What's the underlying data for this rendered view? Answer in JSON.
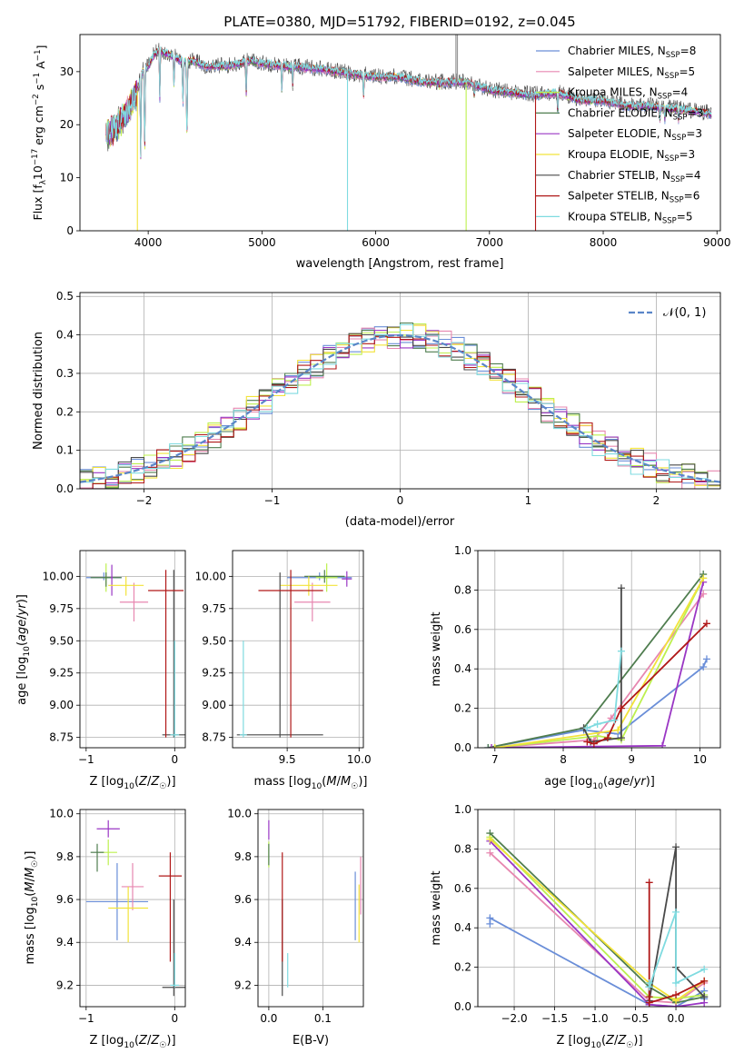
{
  "figure": {
    "title": "PLATE=0380, MJD=51792, FIBERID=0192, z=0.045"
  },
  "series_names": [
    "Chabrier MILES",
    "Salpeter MILES",
    "Kroupa MILES",
    "Chabrier ELODIE",
    "Salpeter ELODIE",
    "Kroupa ELODIE",
    "Chabrier STELIB",
    "Salpeter STELIB",
    "Kroupa STELIB"
  ],
  "series_colors": [
    "#6a8ed8",
    "#e787b0",
    "#bdf04e",
    "#4f7d4f",
    "#9a36c4",
    "#f2e33a",
    "#4a4a4a",
    "#b01818",
    "#7fdbe0"
  ],
  "chart_data": [
    {
      "id": "spectrum",
      "type": "line",
      "xlabel": "wavelength [Angstrom, rest frame]",
      "ylabel": "Flux [f_λ 10^-17 erg cm^-2 s^-1 A^-1]",
      "xlim": [
        3400,
        9030
      ],
      "ylim": [
        0,
        37
      ],
      "xticks": [
        4000,
        5000,
        6000,
        7000,
        8000,
        9000
      ],
      "yticks": [
        0,
        10,
        20,
        30
      ],
      "grid": false,
      "legend_position": "top-right",
      "legend": [
        {
          "label": "Chabrier MILES, N",
          "sub": "SSP",
          "val": "=8"
        },
        {
          "label": "Salpeter MILES, N",
          "sub": "SSP",
          "val": "=5"
        },
        {
          "label": "Kroupa MILES, N",
          "sub": "SSP",
          "val": "=4"
        },
        {
          "label": "Chabrier ELODIE, N",
          "sub": "SSP",
          "val": "=3"
        },
        {
          "label": "Salpeter ELODIE, N",
          "sub": "SSP",
          "val": "=3"
        },
        {
          "label": "Kroupa ELODIE, N",
          "sub": "SSP",
          "val": "=3"
        },
        {
          "label": "Chabrier STELIB, N",
          "sub": "SSP",
          "val": "=4"
        },
        {
          "label": "Salpeter STELIB, N",
          "sub": "SSP",
          "val": "=6"
        },
        {
          "label": "Kroupa STELIB, N",
          "sub": "SSP",
          "val": "=5"
        }
      ],
      "continuum": [
        [
          3630,
          18
        ],
        [
          3700,
          19
        ],
        [
          3800,
          22
        ],
        [
          3850,
          24
        ],
        [
          3900,
          26
        ],
        [
          3950,
          30
        ],
        [
          4000,
          31
        ],
        [
          4050,
          33
        ],
        [
          4100,
          34
        ],
        [
          4200,
          33
        ],
        [
          4300,
          32
        ],
        [
          4400,
          32
        ],
        [
          4500,
          31
        ],
        [
          4700,
          31
        ],
        [
          4900,
          32
        ],
        [
          5000,
          31.5
        ],
        [
          5200,
          31
        ],
        [
          5500,
          30.5
        ],
        [
          5800,
          29.5
        ],
        [
          6000,
          29
        ],
        [
          6200,
          29
        ],
        [
          6400,
          28
        ],
        [
          6600,
          28
        ],
        [
          6800,
          28
        ],
        [
          7000,
          26.5
        ],
        [
          7200,
          26
        ],
        [
          7400,
          25.5
        ],
        [
          7600,
          26
        ],
        [
          7800,
          24.5
        ],
        [
          8000,
          24.5
        ],
        [
          8200,
          23.5
        ],
        [
          8400,
          23.5
        ],
        [
          8600,
          23
        ],
        [
          8800,
          22.5
        ],
        [
          8950,
          22
        ]
      ],
      "absorption_lines": [
        [
          3934,
          14
        ],
        [
          3969,
          14
        ],
        [
          4102,
          25
        ],
        [
          4227,
          27
        ],
        [
          4305,
          23
        ],
        [
          4340,
          15
        ],
        [
          4861,
          25
        ],
        [
          5175,
          26
        ],
        [
          5270,
          27
        ],
        [
          5893,
          25
        ],
        [
          6563,
          27
        ],
        [
          6867,
          25
        ],
        [
          7600,
          22
        ],
        [
          8498,
          21
        ],
        [
          8542,
          21
        ],
        [
          8662,
          21
        ]
      ],
      "spikes": [
        [
          3905,
          0
        ],
        [
          5752,
          0
        ],
        [
          6795,
          0
        ],
        [
          7405,
          0
        ]
      ]
    },
    {
      "id": "residuals",
      "type": "step",
      "xlabel": "(data-model)/error",
      "ylabel": "Normed distribution",
      "xlim": [
        -2.5,
        2.5
      ],
      "ylim": [
        0,
        0.51
      ],
      "xticks": [
        -2,
        -1,
        0,
        1,
        2
      ],
      "yticks": [
        0.0,
        0.1,
        0.2,
        0.3,
        0.4,
        0.5
      ],
      "grid": true,
      "legend_position": "top-right",
      "legend_label": "𝒩(0, 1)",
      "bin_width": 0.1
    },
    {
      "id": "age-vs-Z",
      "type": "errorbar",
      "xlabel": "Z [log₁₀(Z/Z☉)]",
      "ylabel": "age  [log₁₀(age/yr)]",
      "xlim": [
        -1.07,
        0.12
      ],
      "ylim": [
        8.67,
        10.2
      ],
      "xticks": [
        -1,
        0
      ],
      "yticks": [
        8.75,
        9.0,
        9.25,
        9.5,
        9.75,
        10.0
      ],
      "grid": true,
      "points": [
        [
          -1.0,
          -0.6,
          9.99,
          9.97,
          10.03
        ],
        [
          -0.62,
          -0.3,
          9.8,
          9.65,
          9.95
        ],
        [
          -0.8,
          -0.75,
          9.99,
          9.88,
          10.1
        ],
        [
          -0.95,
          -0.6,
          9.99,
          9.92,
          10.03
        ],
        [
          -0.72,
          -0.7,
          9.99,
          9.85,
          10.09
        ],
        [
          -0.75,
          -0.35,
          9.93,
          9.85,
          10.0
        ],
        [
          -0.14,
          0.12,
          8.77,
          8.75,
          10.05
        ],
        [
          -0.3,
          0.1,
          9.89,
          8.75,
          10.05
        ],
        [
          -0.05,
          0.05,
          8.77,
          8.75,
          9.5
        ]
      ]
    },
    {
      "id": "age-vs-mass",
      "type": "errorbar",
      "xlabel": "mass [log₁₀(M/M☉)]",
      "ylabel": "",
      "xlim": [
        9.12,
        10.03
      ],
      "ylim": [
        8.67,
        10.2
      ],
      "xticks": [
        9.5,
        10.0
      ],
      "yticks": [
        8.75,
        9.0,
        9.25,
        9.5,
        9.75,
        10.0
      ],
      "grid": true,
      "points": [
        [
          9.5,
          9.95,
          9.99,
          9.97,
          10.03
        ],
        [
          9.55,
          9.8,
          9.8,
          9.65,
          9.95
        ],
        [
          9.7,
          9.85,
          9.99,
          9.88,
          10.1
        ],
        [
          9.62,
          9.9,
          10.0,
          9.95,
          10.05
        ],
        [
          9.88,
          9.95,
          9.98,
          9.92,
          10.04
        ],
        [
          9.45,
          9.85,
          9.93,
          9.85,
          10.0
        ],
        [
          9.15,
          9.75,
          8.77,
          8.75,
          10.03
        ],
        [
          9.3,
          9.75,
          9.89,
          8.75,
          10.05
        ],
        [
          9.17,
          9.22,
          8.77,
          8.75,
          9.5
        ]
      ]
    },
    {
      "id": "weight-vs-age",
      "type": "line",
      "xlabel": "age  [log₁₀(age/yr)]",
      "ylabel": "mass weight",
      "xlim": [
        6.75,
        10.3
      ],
      "ylim": [
        0,
        1.0
      ],
      "xticks": [
        7,
        8,
        9,
        10
      ],
      "yticks": [
        0.0,
        0.2,
        0.4,
        0.6,
        0.8,
        1.0
      ],
      "grid": true,
      "series": [
        {
          "x": [
            6.9,
            8.3,
            8.8,
            10.05,
            10.1
          ],
          "y": [
            0.0,
            0.09,
            0.07,
            0.41,
            0.45
          ]
        },
        {
          "x": [
            6.95,
            8.45,
            8.7,
            10.05
          ],
          "y": [
            0.0,
            0.04,
            0.15,
            0.78
          ]
        },
        {
          "x": [
            7.0,
            8.5,
            8.85,
            10.05
          ],
          "y": [
            0.0,
            0.06,
            0.04,
            0.86
          ]
        },
        {
          "x": [
            6.9,
            8.3,
            10.05
          ],
          "y": [
            0.0,
            0.1,
            0.88
          ]
        },
        {
          "x": [
            6.95,
            9.45,
            10.05
          ],
          "y": [
            0.0,
            0.01,
            0.84
          ]
        },
        {
          "x": [
            7.0,
            8.8,
            10.05
          ],
          "y": [
            0.0,
            0.09,
            0.86
          ]
        },
        {
          "x": [
            8.3,
            8.4,
            8.85,
            8.85
          ],
          "y": [
            0.1,
            0.03,
            0.05,
            0.81
          ]
        },
        {
          "x": [
            8.35,
            8.45,
            8.65,
            8.85,
            10.1
          ],
          "y": [
            0.03,
            0.02,
            0.05,
            0.2,
            0.63
          ]
        },
        {
          "x": [
            8.35,
            8.5,
            8.75,
            8.85
          ],
          "y": [
            0.1,
            0.12,
            0.14,
            0.49
          ]
        }
      ]
    },
    {
      "id": "mass-vs-Z",
      "type": "errorbar",
      "xlabel": "Z [log₁₀(Z/Z☉)]",
      "ylabel": "mass [log₁₀(M/M☉)]",
      "xlim": [
        -1.07,
        0.12
      ],
      "ylim": [
        9.1,
        10.02
      ],
      "xticks": [
        -1,
        0
      ],
      "yticks": [
        9.2,
        9.4,
        9.6,
        9.8,
        10.0
      ],
      "grid": true,
      "points": [
        [
          -1.0,
          -0.3,
          9.59,
          9.41,
          9.77
        ],
        [
          -0.6,
          -0.35,
          9.66,
          9.55,
          9.77
        ],
        [
          -0.85,
          -0.65,
          9.82,
          9.76,
          9.88
        ],
        [
          -0.95,
          -0.8,
          9.82,
          9.73,
          9.86
        ],
        [
          -0.88,
          -0.62,
          9.93,
          9.89,
          9.97
        ],
        [
          -0.75,
          -0.3,
          9.56,
          9.4,
          9.66
        ],
        [
          -0.14,
          0.12,
          9.19,
          9.15,
          9.6
        ],
        [
          -0.18,
          0.08,
          9.71,
          9.31,
          9.82
        ],
        [
          -0.05,
          0.05,
          9.2,
          9.19,
          9.35
        ]
      ]
    },
    {
      "id": "mass-vs-EBV",
      "type": "errorbar",
      "xlabel": "E(B-V)",
      "ylabel": "",
      "xlim": [
        -0.02,
        0.175
      ],
      "ylim": [
        9.1,
        10.02
      ],
      "xticks": [
        0.0,
        0.1
      ],
      "yticks": [
        9.2,
        9.4,
        9.6,
        9.8,
        10.0
      ],
      "grid": true,
      "points": [
        [
          0.16,
          0.16,
          9.59,
          9.41,
          9.73
        ],
        [
          0.17,
          0.17,
          9.66,
          9.53,
          9.8
        ],
        [
          0.0,
          0.0,
          9.82,
          9.75,
          9.87
        ],
        [
          0.0,
          0.0,
          9.82,
          9.76,
          9.86
        ],
        [
          0.0,
          0.0,
          9.93,
          9.88,
          9.97
        ],
        [
          0.167,
          0.167,
          9.56,
          9.4,
          9.67
        ],
        [
          0.025,
          0.025,
          9.19,
          9.15,
          9.6
        ],
        [
          0.025,
          0.025,
          9.71,
          9.31,
          9.82
        ],
        [
          0.035,
          0.035,
          9.2,
          9.19,
          9.35
        ]
      ]
    },
    {
      "id": "weight-vs-Z",
      "type": "line",
      "xlabel": "Z [log₁₀(Z/Z☉)]",
      "ylabel": "mass weight",
      "xlim": [
        -2.45,
        0.55
      ],
      "ylim": [
        0,
        1.0
      ],
      "xticks": [
        -2.0,
        -1.5,
        -1.0,
        -0.5,
        0.0
      ],
      "yticks": [
        0.0,
        0.2,
        0.4,
        0.6,
        0.8,
        1.0
      ],
      "grid": true,
      "series": [
        {
          "x": [
            -2.3,
            -2.3,
            -0.33,
            0.0,
            0.35,
            0.35
          ],
          "y": [
            0.42,
            0.45,
            0.01,
            0.0,
            0.08,
            0.04
          ]
        },
        {
          "x": [
            -2.3,
            -0.33,
            0.0,
            0.35
          ],
          "y": [
            0.78,
            0.03,
            0.02,
            0.12
          ]
        },
        {
          "x": [
            -2.3,
            -0.33,
            0.0,
            0.35
          ],
          "y": [
            0.86,
            0.05,
            0.04,
            0.06
          ]
        },
        {
          "x": [
            -2.3,
            -0.33,
            0.0,
            0.35
          ],
          "y": [
            0.88,
            0.1,
            0.02,
            0.05
          ]
        },
        {
          "x": [
            -2.3,
            -0.33,
            0.0,
            0.35
          ],
          "y": [
            0.84,
            0.01,
            0.0,
            0.02
          ]
        },
        {
          "x": [
            -2.3,
            -0.33,
            0.0,
            0.35
          ],
          "y": [
            0.85,
            0.12,
            0.03,
            0.13
          ]
        },
        {
          "x": [
            -0.33,
            -0.33,
            0.0,
            0.0,
            0.35
          ],
          "y": [
            0.1,
            0.03,
            0.81,
            0.2,
            0.05
          ]
        },
        {
          "x": [
            -0.33,
            -0.33,
            -0.33,
            0.0,
            0.35
          ],
          "y": [
            0.63,
            0.05,
            0.02,
            0.06,
            0.13
          ]
        },
        {
          "x": [
            -0.33,
            -0.33,
            0.0,
            0.0,
            0.35
          ],
          "y": [
            0.12,
            0.1,
            0.48,
            0.12,
            0.19
          ]
        }
      ]
    }
  ]
}
